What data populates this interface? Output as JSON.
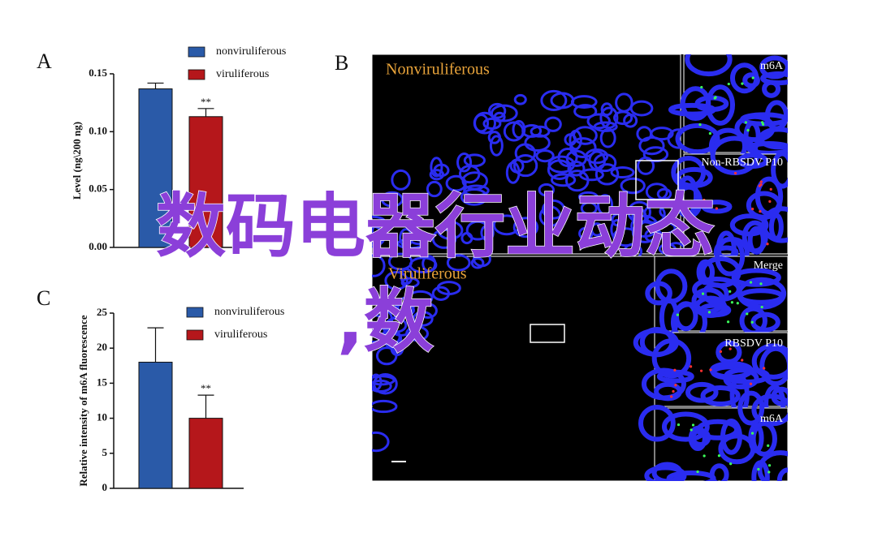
{
  "chart_data": [
    {
      "type": "bar",
      "panel": "A",
      "y_label": "Level (ng\\200 ng)",
      "categories": [
        "nonviruliferous",
        "viruliferous"
      ],
      "series": [
        {
          "name": "nonviruliferous",
          "color": "#2a5aa8",
          "values": [
            0.137,
            0.113
          ],
          "errors": [
            0.005,
            0.007
          ]
        }
      ],
      "colors": [
        "#2a5aa8",
        "#b5171b"
      ],
      "annotation": "**",
      "ylim": [
        0,
        0.15
      ],
      "yticks": [
        {
          "value": 0,
          "label": "0.00"
        },
        {
          "value": 0.05,
          "label": "0.05"
        },
        {
          "value": 0.1,
          "label": "0.10"
        },
        {
          "value": 0.15,
          "label": "0.15"
        }
      ]
    },
    {
      "type": "bar",
      "panel": "C",
      "y_label": "Relative intensity of m6A fluorescence",
      "categories": [
        "nonviruliferous",
        "viruliferous"
      ],
      "series": [
        {
          "name": "nonviruliferous",
          "color": "#2a5aa8",
          "values": [
            18,
            10
          ],
          "errors": [
            4.9,
            3.3
          ]
        }
      ],
      "colors": [
        "#2a5aa8",
        "#b5171b"
      ],
      "annotation": "**",
      "ylim": [
        0,
        25
      ],
      "yticks": [
        0,
        5,
        10,
        15,
        20,
        25
      ]
    }
  ],
  "panel_b": {
    "label": "B",
    "main_labels": [
      "Nonviruliferous",
      "Viruliferous"
    ],
    "insets": [
      "m6A",
      "Non-RBSDV P10",
      "Merge",
      "RBSDV P10",
      "m6A"
    ]
  },
  "overlay": [
    "数码电器行业动态",
    ",数"
  ]
}
